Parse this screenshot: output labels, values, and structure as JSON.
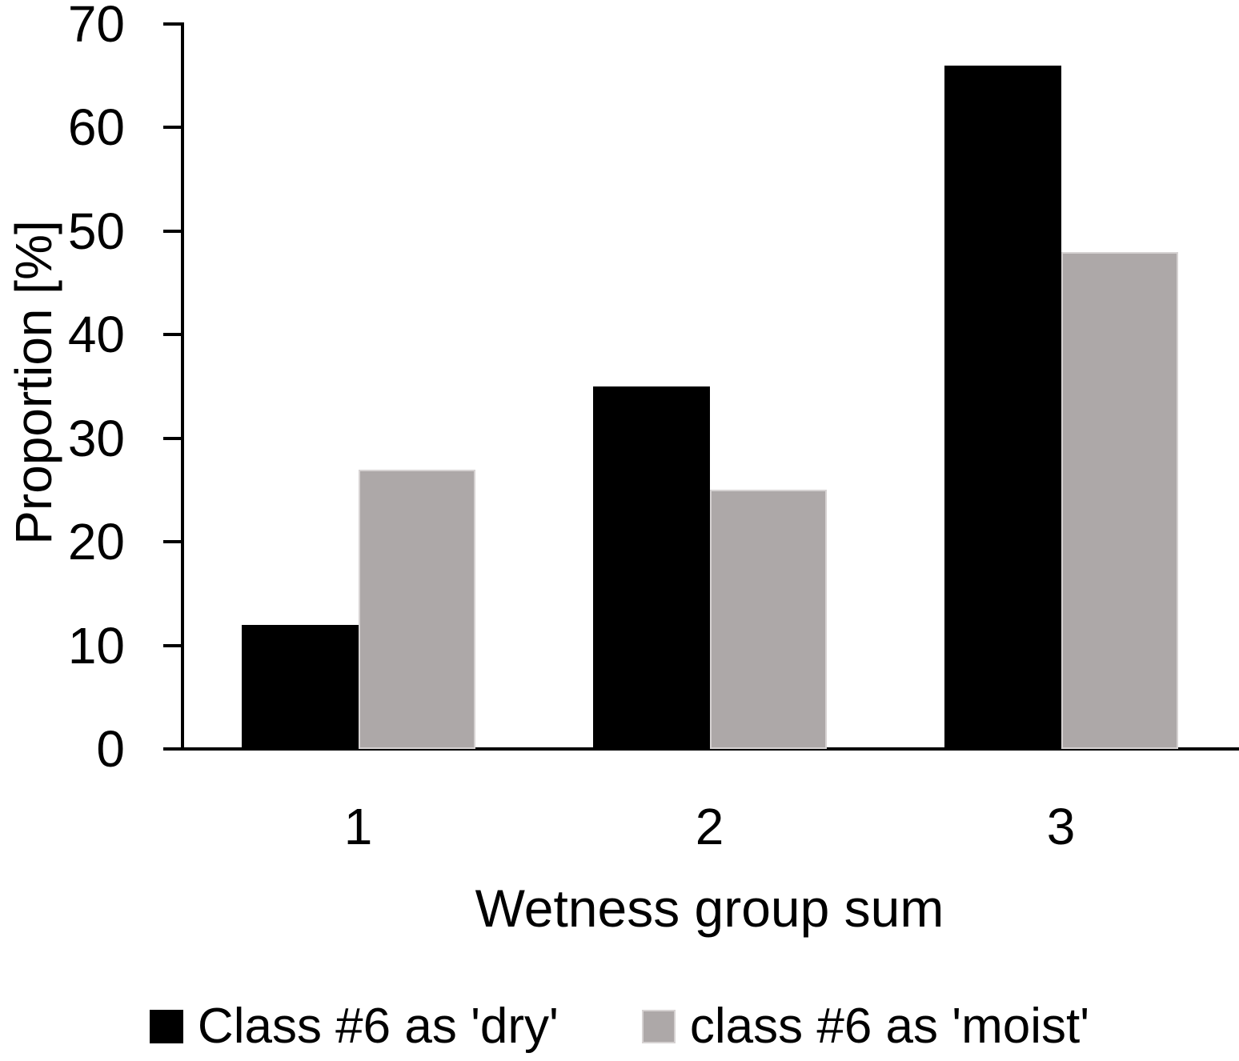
{
  "chart_data": {
    "type": "bar",
    "title": "",
    "xlabel": "Wetness group sum",
    "ylabel": "Proportion [%]",
    "categories": [
      "1",
      "2",
      "3"
    ],
    "series": [
      {
        "key": "dry",
        "name": "Class #6 as 'dry'",
        "color": "#000000",
        "values": [
          12,
          35,
          66
        ]
      },
      {
        "key": "moist",
        "name": "class #6 as 'moist'",
        "color": "#ADA8A8",
        "border_color": "#D6D2D2",
        "values": [
          27,
          25,
          48
        ]
      }
    ],
    "ylim": [
      0,
      70
    ],
    "ytick_step": 10,
    "yticks": [
      0,
      10,
      20,
      30,
      40,
      50,
      60,
      70
    ],
    "grid": false,
    "legend_position": "bottom",
    "axis_color": "#000000",
    "background_color": "#ffffff"
  }
}
